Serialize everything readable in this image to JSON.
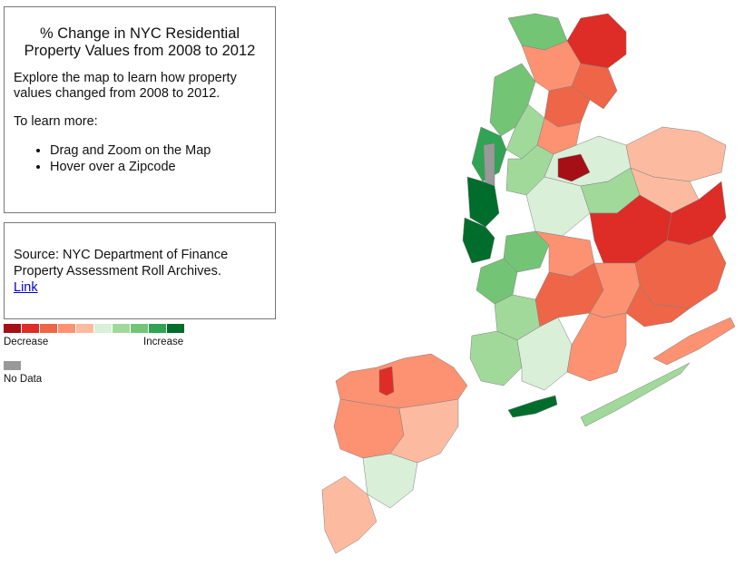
{
  "info": {
    "title": "% Change in NYC Residential Property Values from 2008 to 2012",
    "intro": "Explore the map to learn how property values changed from 2008 to 2012.",
    "learn_more": "To learn more:",
    "bullets": [
      "Drag and Zoom on the Map",
      "Hover over a Zipcode"
    ]
  },
  "source": {
    "text": "Source: NYC Department of Finance Property Assessment Roll Archives.",
    "link_label": "Link"
  },
  "legend": {
    "decrease_label": "Decrease",
    "increase_label": "Increase",
    "no_data_label": "No Data",
    "colors": [
      "#a50f15",
      "#de2d26",
      "#ef6548",
      "#fc9272",
      "#fcbba1",
      "#d9efd7",
      "#a1d99b",
      "#74c476",
      "#31a354",
      "#006d2c"
    ],
    "no_data_color": "#999999"
  },
  "map": {
    "zipcode_classes": {
      "staten_island_north": 3,
      "staten_island_midland": 3,
      "staten_island_east": 4,
      "staten_island_south": 5,
      "staten_island_tip": 4,
      "staten_island_port_richmond": 1,
      "manhattan_upper": 7,
      "manhattan_midtown": 8,
      "manhattan_west": 9,
      "manhattan_downtown": 9,
      "manhattan_east": 6,
      "central_park": "no_data",
      "bronx_west": 3,
      "bronx_central": 2,
      "bronx_east": 2,
      "bronx_north": 1,
      "bronx_south": 3,
      "bronx_riverdale": 7,
      "queens_west": 6,
      "queens_northwest": 5,
      "queens_north": 4,
      "queens_central": 5,
      "queens_east": 4,
      "queens_southeast": 2,
      "queens_jamaica": 1,
      "queens_far_east": 1,
      "queens_flushing": 0,
      "queens_forest_hills": 6,
      "queens_rockaway_west": 6,
      "queens_rockaway_east": 3,
      "brooklyn_north": 3,
      "brooklyn_williamsburg": 7,
      "brooklyn_downtown": 7,
      "brooklyn_park_slope": 6,
      "brooklyn_central": 2,
      "brooklyn_brownsville": 0,
      "brooklyn_east": 3,
      "brooklyn_south": 5,
      "brooklyn_southwest": 6,
      "brooklyn_coney_island": 9,
      "brooklyn_canarsie": 3,
      "jamaica_bay_area": 2
    }
  }
}
